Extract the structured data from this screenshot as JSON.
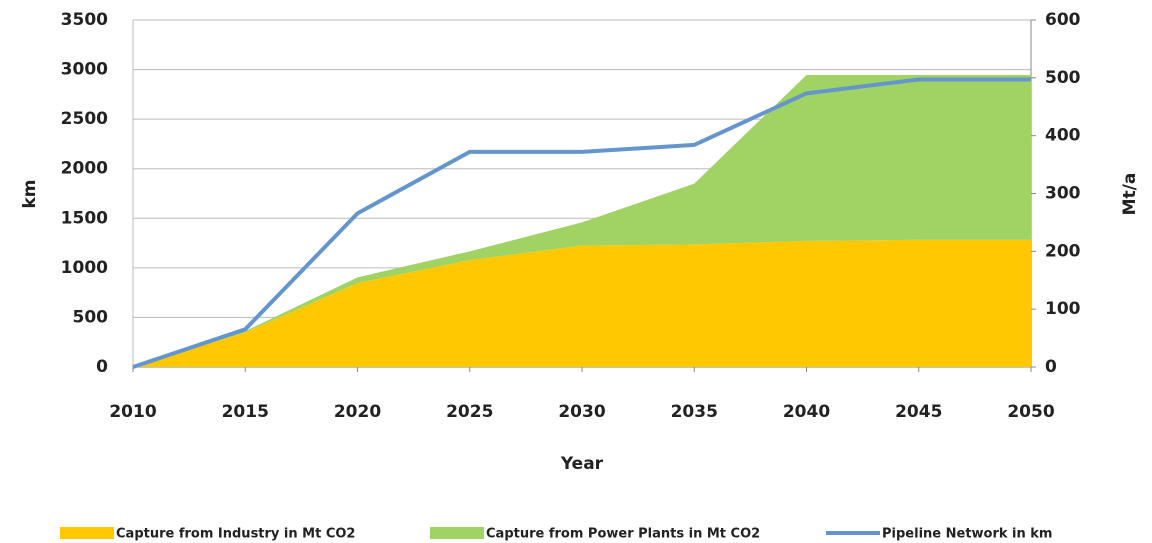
{
  "chart_data": {
    "type": "area",
    "stacked": true,
    "grid": true,
    "legend": "bottom",
    "x_label": "Year",
    "y_label": "km",
    "y2_label": "Mt/a",
    "x": [
      2010,
      2015,
      2020,
      2025,
      2030,
      2035,
      2040,
      2045,
      2050
    ],
    "xlim": [
      2010,
      2050
    ],
    "xticks": [
      2010,
      2015,
      2020,
      2025,
      2030,
      2035,
      2040,
      2045,
      2050
    ],
    "ylim": [
      0,
      3500
    ],
    "yticks": [
      0,
      500,
      1000,
      1500,
      2000,
      2500,
      3000,
      3500
    ],
    "y2lim": [
      0,
      600
    ],
    "y2ticks": [
      0,
      100,
      200,
      300,
      400,
      500,
      600
    ],
    "series": [
      {
        "name": "Capture from Industry in Mt CO2",
        "type": "area",
        "axis": "y2",
        "color": "#ffc800",
        "values": [
          0,
          60,
          145,
          185,
          210,
          212,
          218,
          220,
          220
        ]
      },
      {
        "name": "Capture from Power Plants in Mt CO2",
        "type": "area",
        "axis": "y2",
        "color": "#a0d264",
        "values": [
          0,
          2,
          10,
          15,
          40,
          105,
          287,
          285,
          285
        ]
      },
      {
        "name": "Pipeline Network in km",
        "type": "line",
        "axis": "y",
        "color": "#6496cd",
        "values": [
          0,
          380,
          1550,
          2170,
          2170,
          2240,
          2760,
          2900,
          2900
        ]
      }
    ]
  }
}
